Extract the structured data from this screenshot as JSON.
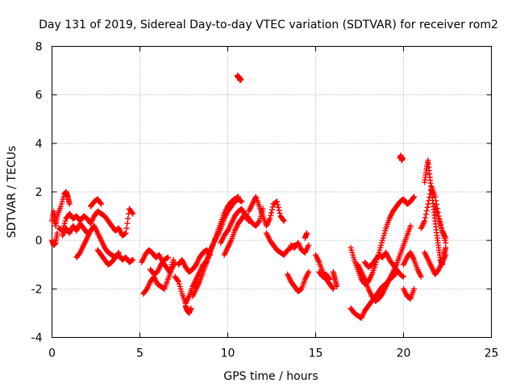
{
  "chart_data": {
    "type": "scatter",
    "title": "Day 131 of 2019, Sidereal Day-to-day VTEC variation (SDTVAR) for receiver rom2",
    "xlabel": "GPS time / hours",
    "ylabel": "SDTVAR / TECUs",
    "xlim": [
      0,
      25
    ],
    "ylim": [
      -4,
      8
    ],
    "grid": true,
    "marker": "plus",
    "color": "#ff0000",
    "x_ticks": [
      0,
      5,
      10,
      15,
      20,
      25
    ],
    "y_ticks": [
      -4,
      -2,
      0,
      2,
      4,
      6,
      8
    ],
    "x_tick_labels": [
      "0",
      "5",
      "10",
      "15",
      "20",
      "25"
    ],
    "y_tick_labels": [
      "-4",
      "-2",
      "0",
      "2",
      "4",
      "6",
      "8"
    ],
    "series": [
      {
        "name": "SDTVAR",
        "traces": [
          {
            "x": [
              0.0,
              0.1,
              0.2,
              0.3,
              0.5,
              0.7,
              0.8,
              0.9,
              1.0
            ],
            "y": [
              0.8,
              1.2,
              0.6,
              1.0,
              1.4,
              1.9,
              2.0,
              1.8,
              1.5
            ]
          },
          {
            "x": [
              0.0,
              0.1,
              0.2,
              0.3
            ],
            "y": [
              0.0,
              -0.2,
              -0.1,
              0.3
            ]
          },
          {
            "x": [
              0.4,
              0.6,
              0.8,
              1.0,
              1.2,
              1.4,
              1.6,
              1.8,
              2.0,
              2.2,
              2.4,
              2.6,
              2.8,
              3.0,
              3.2,
              3.4,
              3.6,
              3.8,
              4.0,
              4.2,
              4.4,
              4.6
            ],
            "y": [
              0.5,
              0.4,
              0.9,
              1.1,
              0.9,
              1.0,
              0.8,
              1.0,
              0.9,
              0.7,
              1.0,
              1.2,
              1.1,
              1.0,
              0.8,
              0.6,
              0.4,
              0.5,
              0.2,
              0.3,
              1.3,
              1.1
            ]
          },
          {
            "x": [
              0.6,
              0.8,
              1.0,
              1.2,
              1.4,
              1.6,
              1.8,
              2.0
            ],
            "y": [
              0.2,
              0.5,
              0.3,
              0.6,
              0.4,
              0.7,
              0.5,
              0.3
            ]
          },
          {
            "x": [
              1.4,
              1.6,
              1.8,
              2.0,
              2.2,
              2.4,
              2.6,
              2.8,
              3.0,
              3.2,
              3.4,
              3.6,
              3.8,
              4.0,
              4.2,
              4.4,
              4.6
            ],
            "y": [
              -0.7,
              -0.5,
              -0.2,
              0.1,
              0.4,
              0.6,
              0.3,
              0.0,
              -0.3,
              -0.5,
              -0.6,
              -0.7,
              -0.6,
              -0.8,
              -0.7,
              -0.9,
              -0.8
            ]
          },
          {
            "x": [
              2.2,
              2.4,
              2.6,
              2.8
            ],
            "y": [
              1.4,
              1.6,
              1.7,
              1.5
            ]
          },
          {
            "x": [
              2.6,
              2.8,
              3.0,
              3.2,
              3.4,
              3.6,
              3.8
            ],
            "y": [
              -0.4,
              -0.6,
              -0.8,
              -1.0,
              -0.9,
              -0.7,
              -0.5
            ]
          },
          {
            "x": [
              5.1,
              5.3,
              5.5,
              5.7,
              5.9,
              6.1,
              6.3,
              6.5,
              6.7,
              6.9
            ],
            "y": [
              -0.9,
              -0.6,
              -0.4,
              -0.5,
              -0.7,
              -0.6,
              -0.9,
              -1.1,
              -1.3,
              -0.8
            ]
          },
          {
            "x": [
              5.2,
              5.4,
              5.6,
              5.8,
              6.0,
              6.2,
              6.4,
              6.6,
              6.8,
              7.0
            ],
            "y": [
              -2.2,
              -2.0,
              -1.7,
              -1.5,
              -1.8,
              -1.9,
              -2.0,
              -1.6,
              -1.2,
              -0.9
            ]
          },
          {
            "x": [
              5.6,
              5.8,
              6.0,
              6.2,
              6.4,
              6.6
            ],
            "y": [
              -1.2,
              -1.4,
              -1.3,
              -1.0,
              -0.8,
              -0.7
            ]
          },
          {
            "x": [
              7.0,
              7.2,
              7.4,
              7.6,
              7.8,
              8.0,
              8.2,
              8.4,
              8.6,
              8.8
            ],
            "y": [
              -1.5,
              -1.7,
              -2.2,
              -2.6,
              -2.3,
              -1.9,
              -1.6,
              -1.3,
              -1.0,
              -0.9
            ]
          },
          {
            "x": [
              7.6,
              7.7,
              7.8,
              7.9
            ],
            "y": [
              -2.7,
              -2.9,
              -3.0,
              -2.8
            ]
          },
          {
            "x": [
              7.2,
              7.4,
              7.6,
              7.8,
              8.0,
              8.2,
              8.4,
              8.6,
              8.8,
              9.0
            ],
            "y": [
              -1.0,
              -0.8,
              -1.1,
              -1.3,
              -1.2,
              -1.0,
              -0.7,
              -0.5,
              -0.4,
              -0.6
            ]
          },
          {
            "x": [
              8.0,
              8.2,
              8.4,
              8.6,
              8.8,
              9.0,
              9.2,
              9.4,
              9.6,
              9.8,
              10.0,
              10.2,
              10.4,
              10.6
            ],
            "y": [
              -2.3,
              -2.0,
              -1.7,
              -1.3,
              -0.9,
              -0.5,
              -0.1,
              0.3,
              0.7,
              1.1,
              1.4,
              1.6,
              1.7,
              1.8
            ]
          },
          {
            "x": [
              8.6,
              8.8,
              9.0,
              9.2,
              9.4,
              9.6,
              9.8,
              10.0,
              10.2,
              10.4,
              10.6,
              10.8
            ],
            "y": [
              -1.1,
              -0.8,
              -0.4,
              -0.1,
              0.2,
              0.5,
              0.9,
              1.2,
              1.4,
              1.6,
              1.7,
              1.6
            ]
          },
          {
            "x": [
              9.6,
              9.8,
              10.0,
              10.2,
              10.4,
              10.6,
              10.8,
              11.0,
              11.2
            ],
            "y": [
              -0.1,
              0.2,
              0.4,
              0.7,
              1.0,
              1.2,
              1.3,
              1.0,
              0.8
            ]
          },
          {
            "x": [
              9.8,
              10.0,
              10.2,
              10.4,
              10.6,
              10.8,
              11.0,
              11.2,
              11.4,
              11.6,
              11.8,
              12.0
            ],
            "y": [
              -0.6,
              -0.3,
              0.0,
              0.4,
              0.7,
              0.9,
              1.1,
              0.9,
              0.7,
              0.6,
              0.8,
              1.3
            ]
          },
          {
            "x": [
              10.55,
              10.6,
              10.65,
              10.7,
              10.75
            ],
            "y": [
              6.8,
              6.7,
              6.75,
              6.6,
              6.65
            ]
          },
          {
            "x": [
              11.2,
              11.4,
              11.6,
              11.8,
              12.0,
              12.2,
              12.4,
              12.6,
              12.8,
              13.0,
              13.2
            ],
            "y": [
              1.2,
              1.5,
              1.8,
              1.4,
              1.0,
              0.6,
              0.9,
              1.5,
              1.6,
              1.0,
              0.8
            ]
          },
          {
            "x": [
              12.2,
              12.4,
              12.6,
              12.8,
              13.0,
              13.2,
              13.4,
              13.6,
              13.8
            ],
            "y": [
              0.3,
              0.0,
              -0.2,
              -0.4,
              -0.5,
              -0.6,
              -0.4,
              -0.3,
              -0.2
            ]
          },
          {
            "x": [
              13.4,
              13.6,
              13.8,
              14.0,
              14.2,
              14.4,
              14.6
            ],
            "y": [
              -1.4,
              -1.7,
              -1.9,
              -2.1,
              -2.0,
              -1.6,
              -1.3
            ]
          },
          {
            "x": [
              13.6,
              13.8,
              14.0,
              14.2,
              14.4,
              14.6
            ],
            "y": [
              -0.2,
              -0.3,
              -0.1,
              -0.4,
              -0.5,
              -0.2
            ]
          },
          {
            "x": [
              14.4,
              14.5
            ],
            "y": [
              0.1,
              0.3
            ]
          },
          {
            "x": [
              15.0,
              15.2,
              15.4,
              15.6,
              15.8,
              16.0
            ],
            "y": [
              -0.6,
              -0.9,
              -1.3,
              -1.6,
              -1.8,
              -2.0
            ]
          },
          {
            "x": [
              15.2,
              15.4,
              15.6,
              15.8
            ],
            "y": [
              -1.3,
              -1.5,
              -1.4,
              -1.6
            ]
          },
          {
            "x": [
              16.0,
              16.1,
              16.2
            ],
            "y": [
              -1.3,
              -1.6,
              -1.9
            ]
          },
          {
            "x": [
              17.0,
              17.2,
              17.4,
              17.6,
              17.8,
              18.0,
              18.2,
              18.4,
              18.6,
              18.8,
              19.0,
              19.2,
              19.4,
              19.6,
              19.8,
              20.0,
              20.2,
              20.4,
              20.6
            ],
            "y": [
              -0.3,
              -0.8,
              -1.2,
              -1.6,
              -1.8,
              -1.7,
              -1.4,
              -1.0,
              -0.5,
              0.0,
              0.5,
              0.9,
              1.2,
              1.4,
              1.6,
              1.7,
              1.5,
              1.6,
              1.8
            ]
          },
          {
            "x": [
              17.0,
              17.2,
              17.4,
              17.6,
              17.8,
              18.0,
              18.2,
              18.4,
              18.6,
              18.8,
              19.0,
              19.2,
              19.4,
              19.6
            ],
            "y": [
              -2.8,
              -3.0,
              -3.1,
              -3.2,
              -2.9,
              -2.7,
              -2.5,
              -2.3,
              -2.1,
              -1.9,
              -1.8,
              -1.6,
              -1.5,
              -1.3
            ]
          },
          {
            "x": [
              17.4,
              17.6,
              17.8,
              18.0,
              18.2,
              18.4,
              18.6,
              18.8,
              19.0,
              19.2,
              19.4,
              19.6,
              19.8,
              20.0,
              20.2,
              20.4
            ],
            "y": [
              -1.0,
              -1.3,
              -1.6,
              -2.0,
              -2.3,
              -2.5,
              -2.4,
              -2.2,
              -1.9,
              -1.6,
              -1.3,
              -1.0,
              -0.6,
              -0.2,
              0.2,
              0.6
            ]
          },
          {
            "x": [
              17.8,
              18.0,
              18.2,
              18.4,
              18.6,
              18.8,
              19.0,
              19.2,
              19.4,
              19.6,
              19.8,
              20.0
            ],
            "y": [
              -0.9,
              -1.1,
              -1.0,
              -0.8,
              -0.6,
              -0.7,
              -0.5,
              -0.8,
              -1.0,
              -1.2,
              -1.4,
              -1.5
            ]
          },
          {
            "x": [
              19.8,
              19.85,
              19.9,
              19.95
            ],
            "y": [
              3.4,
              3.5,
              3.3,
              3.4
            ]
          },
          {
            "x": [
              20.0,
              20.2,
              20.4,
              20.6
            ],
            "y": [
              -2.0,
              -2.3,
              -2.4,
              -2.0
            ]
          },
          {
            "x": [
              20.0,
              20.2,
              20.4,
              20.6,
              20.8,
              21.0
            ],
            "y": [
              -1.0,
              -0.7,
              -0.5,
              -0.8,
              -1.2,
              -1.5
            ]
          },
          {
            "x": [
              21.2,
              21.3,
              21.4,
              21.5,
              21.6,
              21.7,
              21.8,
              21.9,
              22.0,
              22.1,
              22.2,
              22.3,
              22.4
            ],
            "y": [
              2.4,
              2.9,
              3.3,
              2.6,
              2.0,
              1.4,
              0.8,
              0.2,
              -0.3,
              -0.8,
              -1.0,
              -0.6,
              -0.3
            ]
          },
          {
            "x": [
              21.0,
              21.2,
              21.4,
              21.6,
              21.8,
              22.0,
              22.2,
              22.4
            ],
            "y": [
              0.5,
              0.8,
              1.5,
              2.2,
              1.8,
              1.0,
              0.4,
              0.1
            ]
          },
          {
            "x": [
              21.2,
              21.4,
              21.6,
              21.8,
              22.0,
              22.2,
              22.4
            ],
            "y": [
              -0.5,
              -0.8,
              -1.1,
              -1.4,
              -1.2,
              -0.9,
              -0.6
            ]
          },
          {
            "x": [
              21.8,
              22.0,
              22.2,
              22.4
            ],
            "y": [
              1.4,
              0.9,
              0.4,
              -0.1
            ]
          }
        ]
      }
    ]
  }
}
